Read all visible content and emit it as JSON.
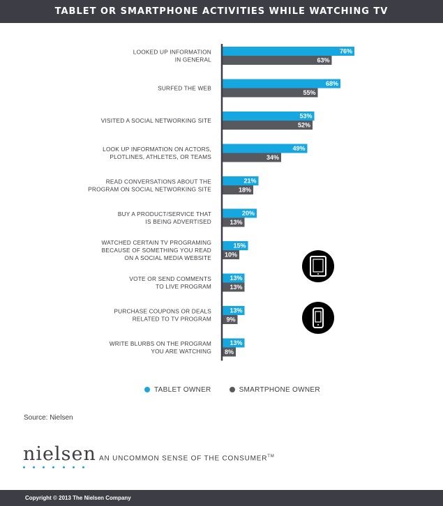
{
  "header": {
    "title": "TABLET OR SMARTPHONE ACTIVITIES WHILE WATCHING TV"
  },
  "chart_data": {
    "type": "bar",
    "orientation": "horizontal",
    "categories": [
      [
        "LOOKED UP INFORMATION",
        "IN GENERAL"
      ],
      [
        "SURFED THE WEB"
      ],
      [
        "VISITED A SOCIAL NETWORKING SITE"
      ],
      [
        "LOOK UP INFORMATION ON ACTORS,",
        "PLOTLINES, ATHLETES, OR TEAMS"
      ],
      [
        "READ CONVERSATIONS ABOUT THE",
        "PROGRAM ON SOCIAL NETWORKING SITE"
      ],
      [
        "BUY A PRODUCT/SERVICE THAT",
        "IS BEING ADVERTISED"
      ],
      [
        "WATCHED CERTAIN TV PROGRAMING",
        "BECAUSE OF SOMETHING YOU READ",
        "ON A SOCIAL MEDIA WEBSITE"
      ],
      [
        "VOTE OR SEND COMMENTS",
        "TO LIVE PROGRAM"
      ],
      [
        "PURCHASE COUPONS OR DEALS",
        "RELATED TO TV PROGRAM"
      ],
      [
        "WRITE BLURBS ON THE PROGRAM",
        "YOU ARE WATCHING"
      ]
    ],
    "series": [
      {
        "name": "TABLET OWNER",
        "color": "#16a6e0",
        "values": [
          76,
          68,
          53,
          49,
          21,
          20,
          15,
          13,
          13,
          13
        ]
      },
      {
        "name": "SMARTPHONE OWNER",
        "color": "#58585f",
        "values": [
          63,
          55,
          52,
          34,
          18,
          13,
          10,
          13,
          9,
          8
        ]
      }
    ],
    "value_suffix": "%",
    "xlim": [
      0,
      100
    ],
    "legend_position": "bottom"
  },
  "source": "Source: Nielsen",
  "brand": {
    "logo": "nielsen",
    "tagline": "AN UNCOMMON SENSE OF THE CONSUMER",
    "trademark": "TM"
  },
  "footer": {
    "copyright": "Copyright © 2013 The Nielsen Company"
  },
  "icons": {
    "tablet": "tablet-icon",
    "smartphone": "smartphone-icon"
  }
}
